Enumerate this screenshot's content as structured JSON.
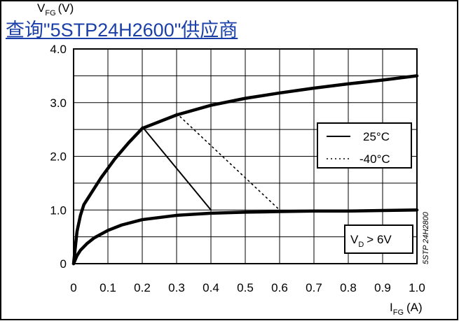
{
  "link_text": "查询\"5STP24H2600\"供应商",
  "chart_data": {
    "type": "line",
    "ylabel_main": "V",
    "ylabel_sub": "FG",
    "ylabel_unit": "(V)",
    "xlabel_main": "I",
    "xlabel_sub": "FG",
    "xlabel_unit": "(A)",
    "xlim": [
      0,
      1.0
    ],
    "ylim": [
      0,
      4.0
    ],
    "x_ticks": [
      "0",
      "0.1",
      "0.2",
      "0.3",
      "0.4",
      "0.5",
      "0.6",
      "0.7",
      "0.8",
      "0.9",
      "1.0"
    ],
    "y_ticks": [
      "0",
      "1.0",
      "2.0",
      "3.0",
      "4.0"
    ],
    "grid": true,
    "legend": [
      {
        "label": "25°C",
        "style": "solid"
      },
      {
        "label": "-40°C",
        "style": "dotted"
      }
    ],
    "condition_main": "V",
    "condition_sub": "D",
    "condition_rest": "> 6V",
    "side_code": "5STP 24H2800",
    "series": [
      {
        "style": "thick",
        "x": [
          0,
          0.01,
          0.02,
          0.03,
          0.05,
          0.08,
          0.12,
          0.16,
          0.2,
          0.3,
          0.4,
          0.5,
          0.6,
          0.7,
          0.8,
          0.9,
          1.0
        ],
        "y": [
          0,
          0.6,
          0.9,
          1.1,
          1.3,
          1.6,
          1.95,
          2.25,
          2.52,
          2.77,
          2.95,
          3.08,
          3.18,
          3.27,
          3.35,
          3.42,
          3.5
        ]
      },
      {
        "style": "thick",
        "x": [
          0,
          0.01,
          0.02,
          0.04,
          0.06,
          0.1,
          0.14,
          0.2,
          0.3,
          0.4,
          0.5,
          0.6,
          0.7,
          0.8,
          0.9,
          1.0
        ],
        "y": [
          0,
          0.15,
          0.25,
          0.38,
          0.48,
          0.62,
          0.72,
          0.82,
          0.9,
          0.94,
          0.96,
          0.97,
          0.98,
          0.98,
          0.99,
          1.0
        ]
      },
      {
        "style": "thin",
        "x": [
          0.2,
          0.4
        ],
        "y": [
          2.55,
          1.0
        ]
      },
      {
        "style": "dotted",
        "x": [
          0.3,
          0.6
        ],
        "y": [
          2.8,
          1.0
        ]
      }
    ]
  }
}
